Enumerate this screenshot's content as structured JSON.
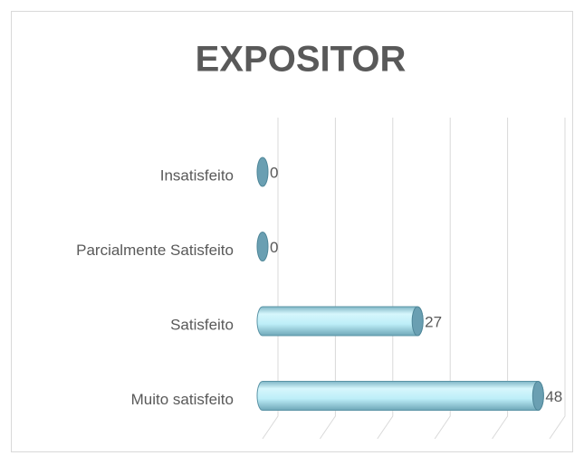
{
  "chart_data": {
    "type": "bar",
    "orientation": "horizontal",
    "title": "EXPOSITOR",
    "categories": [
      "Insatisfeito",
      "Parcialmente Satisfeito",
      "Satisfeito",
      "Muito satisfeito"
    ],
    "values": [
      0,
      0,
      27,
      48
    ],
    "color": "#bdeef8",
    "xlim": [
      0,
      50
    ],
    "xticks": [
      0,
      10,
      20,
      30,
      40,
      50
    ],
    "grid": true
  }
}
